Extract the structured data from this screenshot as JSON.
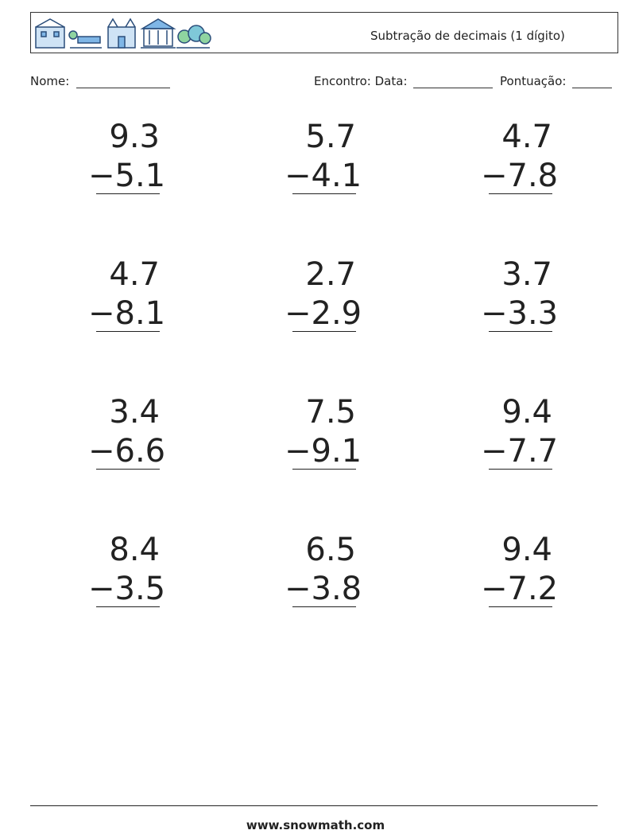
{
  "header": {
    "title": "Subtração de decimais (1 dígito)"
  },
  "fields": {
    "name": "Nome:",
    "date": "Encontro: Data:",
    "score": "Pontuação:"
  },
  "problems": [
    {
      "top": "9.3",
      "bottom": "−5.1"
    },
    {
      "top": "5.7",
      "bottom": "−4.1"
    },
    {
      "top": "4.7",
      "bottom": "−7.8"
    },
    {
      "top": "4.7",
      "bottom": "−8.1"
    },
    {
      "top": "2.7",
      "bottom": "−2.9"
    },
    {
      "top": "3.7",
      "bottom": "−3.3"
    },
    {
      "top": "3.4",
      "bottom": "−6.6"
    },
    {
      "top": "7.5",
      "bottom": "−9.1"
    },
    {
      "top": "9.4",
      "bottom": "−7.7"
    },
    {
      "top": "8.4",
      "bottom": "−3.5"
    },
    {
      "top": "6.5",
      "bottom": "−3.8"
    },
    {
      "top": "9.4",
      "bottom": "−7.2"
    }
  ],
  "footer": {
    "url": "www.snowmath.com"
  }
}
